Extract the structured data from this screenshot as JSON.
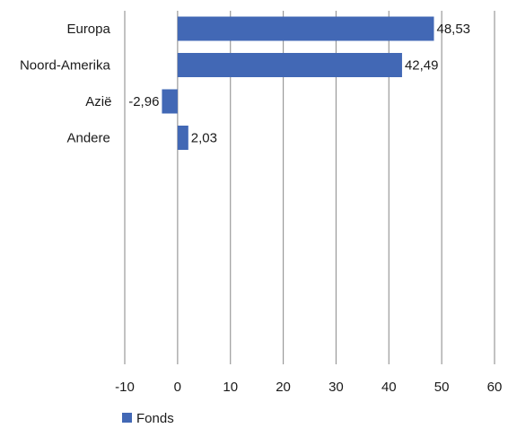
{
  "chart_data": {
    "type": "bar",
    "orientation": "horizontal",
    "categories": [
      "Europa",
      "Noord-Amerika",
      "Azië",
      "Andere"
    ],
    "series": [
      {
        "name": "Fonds",
        "values": [
          48.53,
          42.49,
          -2.96,
          2.03
        ]
      }
    ],
    "data_labels": [
      "48,53",
      "42,49",
      "-2,96",
      "2,03"
    ],
    "x_ticks": [
      -10,
      0,
      10,
      20,
      30,
      40,
      50,
      60
    ],
    "x_tick_labels": [
      "-10",
      "0",
      "10",
      "20",
      "30",
      "40",
      "50",
      "60"
    ],
    "xlim": [
      -10,
      60
    ],
    "title": "",
    "xlabel": "",
    "ylabel": "",
    "grid": "vertical",
    "legend_position": "bottom-left",
    "colors": {
      "bar": "#4268b5",
      "grid": "#9a9a9a"
    }
  }
}
